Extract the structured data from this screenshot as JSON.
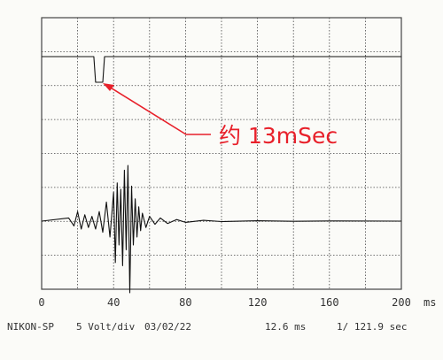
{
  "annotation": {
    "label": "约 13mSec",
    "color": "#e8202a"
  },
  "footer": {
    "device": "NIKON-SP",
    "scale": "5 Volt/div",
    "date": "03/02/22",
    "time_div": "12.6 ms",
    "rate": "1/ 121.9 sec"
  },
  "colors": {
    "trace": "#111111",
    "grid": "#444444",
    "annotation": "#e8202a"
  },
  "chart_data": {
    "type": "line",
    "title": "",
    "xlabel": "",
    "x_unit": "ms",
    "ylabel": "",
    "xlim": [
      0,
      200
    ],
    "x_ticks": [
      0,
      40,
      80,
      120,
      160,
      200
    ],
    "x_tick_labels": [
      "0",
      "40",
      "80",
      "120",
      "160",
      "200"
    ],
    "grid": true,
    "series": [
      {
        "x": [
          0,
          29,
          30,
          34,
          35,
          200
        ],
        "y": [
          0,
          0,
          -1,
          -1,
          0,
          0
        ]
      },
      {
        "x": [
          0,
          15,
          18,
          20,
          22,
          24,
          26,
          28,
          30,
          32,
          34,
          36,
          38,
          40,
          41,
          42,
          43,
          44,
          45,
          46,
          47,
          48,
          49,
          50,
          51,
          52,
          53,
          54,
          55,
          56,
          58,
          60,
          63,
          66,
          70,
          75,
          80,
          90,
          100,
          120,
          140,
          160,
          200
        ],
        "y": [
          0,
          0.2,
          -0.3,
          0.6,
          -0.5,
          0.4,
          -0.4,
          0.3,
          -0.5,
          0.6,
          -0.7,
          1.2,
          -1.0,
          1.8,
          -2.6,
          2.4,
          -1.5,
          2.0,
          -2.8,
          3.2,
          -1.8,
          3.5,
          -4.5,
          2.2,
          -1.5,
          1.4,
          -1.0,
          0.9,
          -0.6,
          0.5,
          -0.4,
          0.3,
          -0.2,
          0.2,
          -0.15,
          0.1,
          -0.08,
          0.05,
          -0.03,
          0.02,
          -0.01,
          0.01,
          0
        ]
      }
    ]
  }
}
